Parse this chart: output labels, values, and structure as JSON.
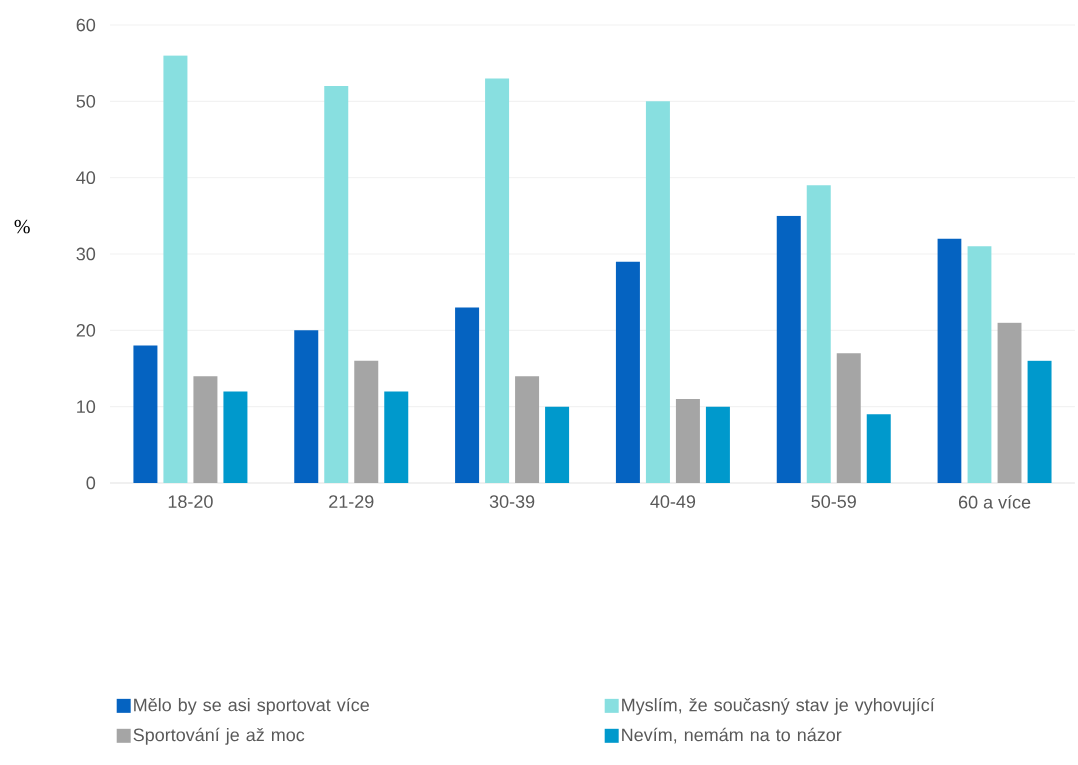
{
  "chart_data": {
    "type": "bar",
    "ylabel": "%",
    "categories": [
      "18-20",
      "21-29",
      "30-39",
      "40-49",
      "50-59",
      "60 a více"
    ],
    "series": [
      {
        "name": "Mělo by se asi sportovat více",
        "color": "#0563c1",
        "values": [
          18,
          20,
          23,
          29,
          35,
          32
        ]
      },
      {
        "name": "Myslím, že současný stav je vyhovující",
        "color": "#88dfe0",
        "values": [
          56,
          52,
          53,
          50,
          39,
          31
        ]
      },
      {
        "name": "Sportování je až moc",
        "color": "#a5a5a5",
        "values": [
          14,
          16,
          14,
          11,
          17,
          21
        ]
      },
      {
        "name": "Nevím, nemám na to názor",
        "color": "#0099cc",
        "values": [
          12,
          12,
          10,
          10,
          9,
          16
        ]
      }
    ],
    "ylim": [
      0,
      60
    ],
    "yticks": [
      0,
      10,
      20,
      30,
      40,
      50,
      60
    ],
    "grid": "y",
    "legend": "bottom"
  }
}
